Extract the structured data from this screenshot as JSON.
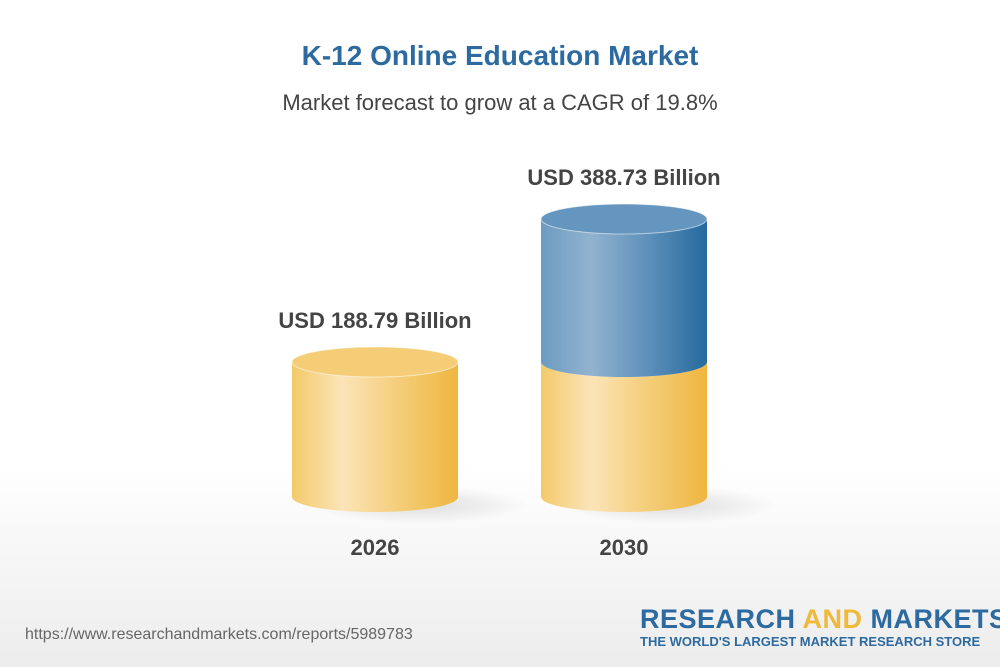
{
  "chart_data": {
    "type": "bar",
    "style": "3d-cylinder",
    "title": "K-12 Online Education Market",
    "subtitle": "Market forecast to grow at a CAGR of 19.8%",
    "categories": [
      "2026",
      "2030"
    ],
    "values": [
      188.79,
      388.73
    ],
    "data_labels": [
      "USD 188.79 Billion",
      "USD 388.73 Billion"
    ],
    "unit": "USD Billion",
    "grid": false,
    "colors": {
      "base": "#f0b93a",
      "growth": "#2d6aa0",
      "title": "#2d6aa0",
      "label": "#444444"
    }
  },
  "footer": {
    "url": "https://www.researchandmarkets.com/reports/5989783",
    "logo_part1": "RESEARCH ",
    "logo_part2": "AND",
    "logo_part3": " MARKETS",
    "logo_tagline": "THE WORLD'S LARGEST MARKET RESEARCH STORE"
  }
}
